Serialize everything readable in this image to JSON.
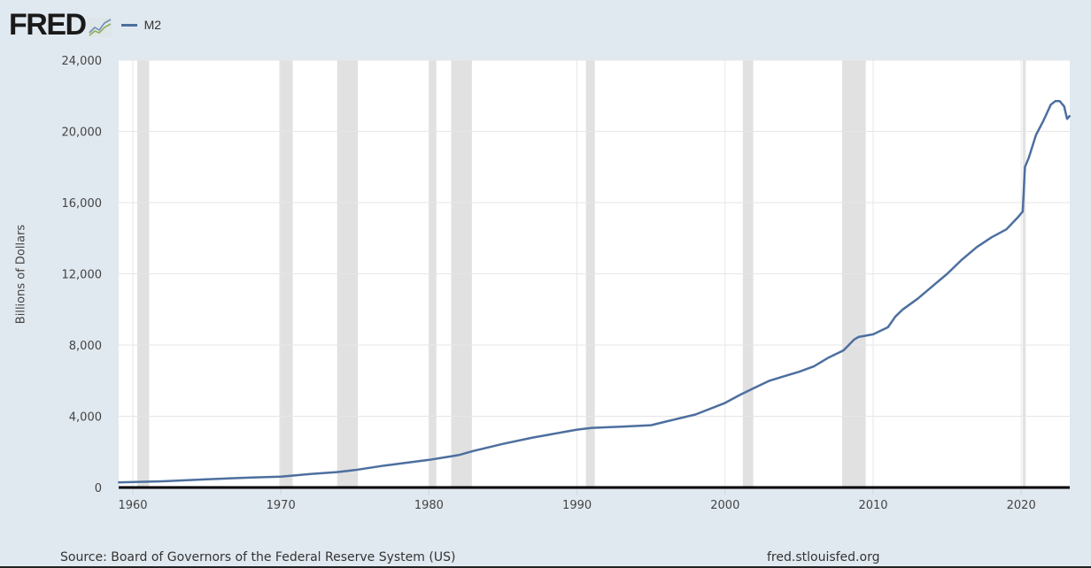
{
  "header": {
    "logo_text": "FRED",
    "legend": [
      {
        "label": "M2",
        "color": "#4d6f9f"
      }
    ]
  },
  "footer": {
    "source": "Source: Board of Governors of the Federal Reserve System (US)",
    "url": "fred.stlouisfed.org"
  },
  "chart_data": {
    "type": "line",
    "title": "M2",
    "xlabel": "",
    "ylabel": "Billions of Dollars",
    "xlim": [
      1959,
      2023.3
    ],
    "ylim": [
      0,
      24000
    ],
    "grid": true,
    "legend_position": "top-left",
    "x_ticks": [
      "1960",
      "1970",
      "1980",
      "1990",
      "2000",
      "2010",
      "2020"
    ],
    "y_ticks": [
      "0",
      "4,000",
      "8,000",
      "12,000",
      "16,000",
      "20,000",
      "24,000"
    ],
    "recessions": [
      [
        1960.3,
        1961.1
      ],
      [
        1969.9,
        1970.8
      ],
      [
        1973.8,
        1975.2
      ],
      [
        1980.0,
        1980.5
      ],
      [
        1981.5,
        1982.9
      ],
      [
        1990.6,
        1991.2
      ],
      [
        2001.2,
        2001.9
      ],
      [
        2007.9,
        2009.5
      ],
      [
        2020.1,
        2020.3
      ]
    ],
    "series": [
      {
        "name": "M2",
        "color": "#4d6f9f",
        "x": [
          1959,
          1962,
          1965,
          1968,
          1970,
          1972,
          1974,
          1975,
          1977,
          1980,
          1982,
          1983,
          1985,
          1987,
          1988,
          1990,
          1991,
          1993,
          1995,
          1996,
          1998,
          2000,
          2001,
          2002,
          2003,
          2004,
          2005,
          2006,
          2007,
          2008,
          2008.7,
          2009,
          2010,
          2011,
          2011.5,
          2012,
          2013,
          2014,
          2015,
          2016,
          2017,
          2018,
          2019,
          2019.8,
          2020.1,
          2020.25,
          2020.5,
          2021,
          2021.5,
          2022,
          2022.3,
          2022.6,
          2022.9,
          2023.1,
          2023.3
        ],
        "values": [
          290,
          350,
          460,
          560,
          610,
          760,
          880,
          980,
          1230,
          1550,
          1820,
          2050,
          2450,
          2800,
          2950,
          3250,
          3350,
          3420,
          3500,
          3700,
          4100,
          4750,
          5200,
          5600,
          6000,
          6250,
          6500,
          6800,
          7300,
          7700,
          8300,
          8450,
          8600,
          9000,
          9600,
          10000,
          10600,
          11300,
          12000,
          12800,
          13500,
          14050,
          14500,
          15200,
          15500,
          18000,
          18500,
          19800,
          20600,
          21500,
          21700,
          21700,
          21400,
          20700,
          20900
        ]
      }
    ]
  }
}
